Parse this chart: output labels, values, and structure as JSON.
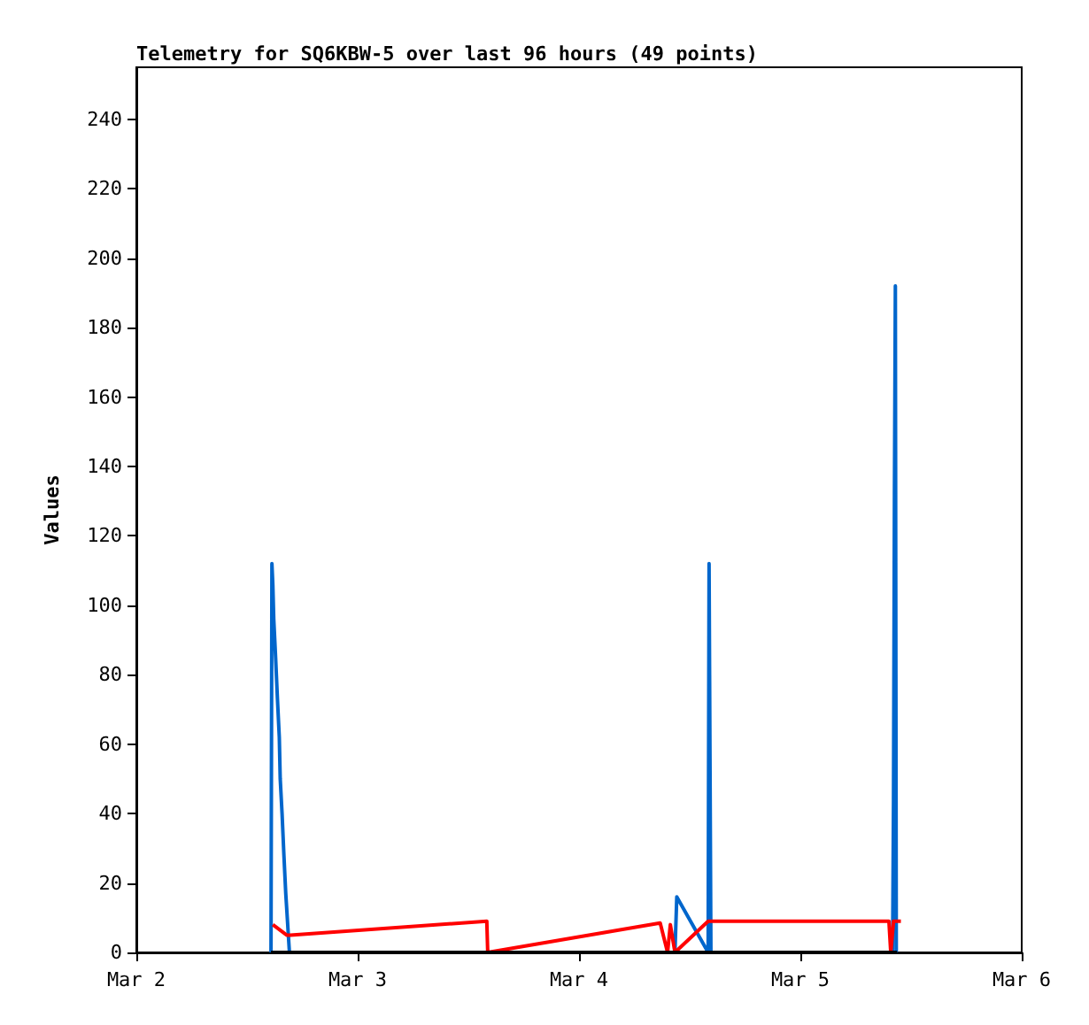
{
  "chart_data": {
    "type": "line",
    "title": "Telemetry for SQ6KBW-5 over last 96 hours (49 points)",
    "ylabel": "Values",
    "xlim": [
      "--03-02",
      "--03-06"
    ],
    "xticks": [
      {
        "value": "--03-02",
        "label": "Mar 2"
      },
      {
        "value": "--03-03",
        "label": "Mar 3"
      },
      {
        "value": "--03-04",
        "label": "Mar 4"
      },
      {
        "value": "--03-05",
        "label": "Mar 5"
      },
      {
        "value": "--03-06",
        "label": "Mar 6"
      }
    ],
    "ylim": [
      0,
      255
    ],
    "yticks": [
      0,
      20,
      40,
      60,
      80,
      100,
      120,
      140,
      160,
      180,
      200,
      220,
      240
    ],
    "grid": false,
    "marker": "none",
    "line_style": "solid",
    "series": [
      {
        "color": "#0066cc",
        "x": [
          "--03-02T14:36",
          "--03-02T14:42",
          "--03-02T14:48",
          "--03-02T14:54",
          "--03-02T15:06",
          "--03-02T15:18",
          "--03-02T15:30",
          "--03-02T15:36",
          "--03-02T15:48",
          "--03-02T16:00",
          "--03-02T16:12",
          "--03-02T16:36",
          "--03-04T10:24",
          "--03-04T10:36",
          "--03-04T14:00",
          "--03-04T14:06",
          "--03-04T14:12",
          "--03-04T14:18",
          "--03-05T10:00",
          "--03-05T10:06",
          "--03-05T10:12",
          "--03-05T10:18",
          "--03-05T10:24"
        ],
        "values": [
          0,
          112,
          106,
          96,
          85,
          73,
          62,
          50,
          40,
          28,
          17,
          0,
          0,
          16,
          0,
          112,
          56,
          0,
          0,
          44,
          132,
          192,
          0
        ]
      },
      {
        "color": "#ff0000",
        "x": [
          "--03-02T14:48",
          "--03-02T16:18",
          "--03-02T16:42",
          "--03-03T14:00",
          "--03-03T14:06",
          "--03-04T08:48",
          "--03-04T09:36",
          "--03-04T09:54",
          "--03-04T10:24",
          "--03-04T14:00",
          "--03-05T09:36",
          "--03-05T09:48",
          "--03-05T10:06",
          "--03-05T10:54"
        ],
        "values": [
          8,
          5,
          5,
          9,
          0,
          8.5,
          0,
          8,
          0,
          9,
          9,
          0,
          9,
          9
        ]
      },
      {
        "color": "#000000",
        "x": [
          "--03-02T14:36",
          "--03-05T10:30"
        ],
        "values": [
          0,
          0
        ]
      }
    ]
  }
}
